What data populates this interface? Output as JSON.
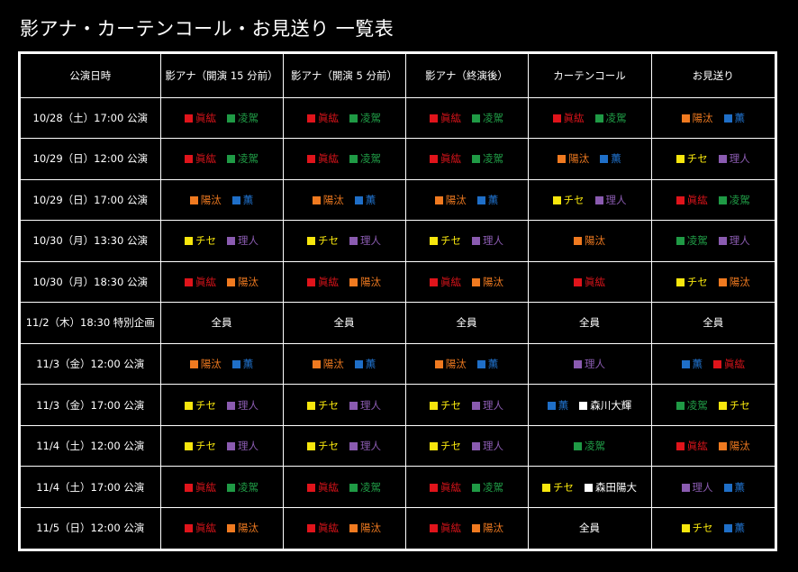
{
  "title": "影アナ・カーテンコール・お見送り 一覧表",
  "columns": [
    "公演日時",
    "影アナ（開演 15 分前）",
    "影アナ（開演 5 分前）",
    "影アナ（終演後）",
    "カーテンコール",
    "お見送り"
  ],
  "colors": {
    "眞紘": "#e0141b",
    "凌駕": "#1f9a45",
    "陽汰": "#f07a20",
    "薫": "#1f6fc8",
    "チセ": "#f7e60d",
    "理人": "#8a5bb0",
    "森川大輝": "#ffffff",
    "森田陽大": "#ffffff",
    "全員": "#ffffff"
  },
  "rows": [
    {
      "date": "10/28（土）17:00 公演",
      "cells": [
        [
          "眞紘",
          "凌駕"
        ],
        [
          "眞紘",
          "凌駕"
        ],
        [
          "眞紘",
          "凌駕"
        ],
        [
          "眞紘",
          "凌駕"
        ],
        [
          "陽汰",
          "薫"
        ]
      ]
    },
    {
      "date": "10/29（日）12:00 公演",
      "cells": [
        [
          "眞紘",
          "凌駕"
        ],
        [
          "眞紘",
          "凌駕"
        ],
        [
          "眞紘",
          "凌駕"
        ],
        [
          "陽汰",
          "薫"
        ],
        [
          "チセ",
          "理人"
        ]
      ]
    },
    {
      "date": "10/29（日）17:00 公演",
      "cells": [
        [
          "陽汰",
          "薫"
        ],
        [
          "陽汰",
          "薫"
        ],
        [
          "陽汰",
          "薫"
        ],
        [
          "チセ",
          "理人"
        ],
        [
          "眞紘",
          "凌駕"
        ]
      ]
    },
    {
      "date": "10/30（月）13:30 公演",
      "cells": [
        [
          "チセ",
          "理人"
        ],
        [
          "チセ",
          "理人"
        ],
        [
          "チセ",
          "理人"
        ],
        [
          "陽汰"
        ],
        [
          "凌駕",
          "理人"
        ]
      ]
    },
    {
      "date": "10/30（月）18:30 公演",
      "cells": [
        [
          "眞紘",
          "陽汰"
        ],
        [
          "眞紘",
          "陽汰"
        ],
        [
          "眞紘",
          "陽汰"
        ],
        [
          "眞紘"
        ],
        [
          "チセ",
          "陽汰"
        ]
      ]
    },
    {
      "date": "11/2（木）18:30 特別企画",
      "cells": [
        [
          "全員"
        ],
        [
          "全員"
        ],
        [
          "全員"
        ],
        [
          "全員"
        ],
        [
          "全員"
        ]
      ]
    },
    {
      "date": "11/3（金）12:00 公演",
      "cells": [
        [
          "陽汰",
          "薫"
        ],
        [
          "陽汰",
          "薫"
        ],
        [
          "陽汰",
          "薫"
        ],
        [
          "理人"
        ],
        [
          "薫",
          "眞紘"
        ]
      ]
    },
    {
      "date": "11/3（金）17:00 公演",
      "cells": [
        [
          "チセ",
          "理人"
        ],
        [
          "チセ",
          "理人"
        ],
        [
          "チセ",
          "理人"
        ],
        [
          "薫",
          "森川大輝"
        ],
        [
          "凌駕",
          "チセ"
        ]
      ]
    },
    {
      "date": "11/4（土）12:00 公演",
      "cells": [
        [
          "チセ",
          "理人"
        ],
        [
          "チセ",
          "理人"
        ],
        [
          "チセ",
          "理人"
        ],
        [
          "凌駕"
        ],
        [
          "眞紘",
          "陽汰"
        ]
      ]
    },
    {
      "date": "11/4（土）17:00 公演",
      "cells": [
        [
          "眞紘",
          "凌駕"
        ],
        [
          "眞紘",
          "凌駕"
        ],
        [
          "眞紘",
          "凌駕"
        ],
        [
          "チセ",
          "森田陽大"
        ],
        [
          "理人",
          "薫"
        ]
      ]
    },
    {
      "date": "11/5（日）12:00 公演",
      "cells": [
        [
          "眞紘",
          "陽汰"
        ],
        [
          "眞紘",
          "陽汰"
        ],
        [
          "眞紘",
          "陽汰"
        ],
        [
          "全員"
        ],
        [
          "チセ",
          "薫"
        ]
      ]
    }
  ]
}
